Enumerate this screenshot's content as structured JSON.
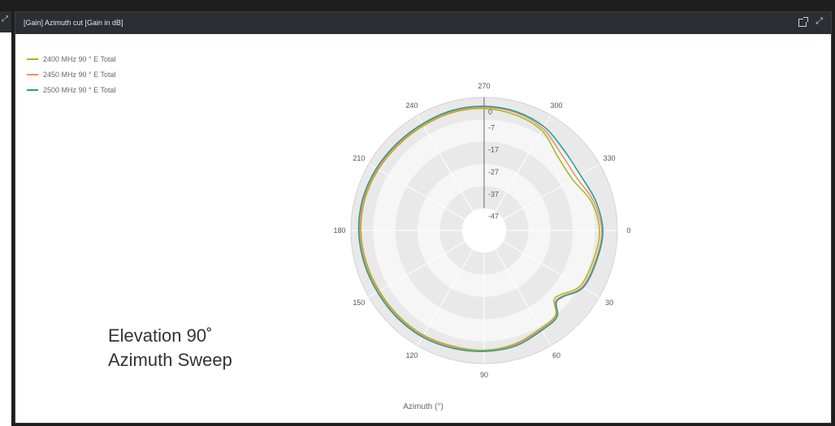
{
  "header": {
    "title": "[Gain] Azimuth cut [Gain in dB]"
  },
  "icons": {
    "popout": "popout-icon",
    "expand": "expand-icon"
  },
  "annotation": {
    "line1": "Elevation 90˚",
    "line2": "Azimuth Sweep"
  },
  "chart_data": {
    "type": "polar-line",
    "xlabel": "Azimuth (°)",
    "angular_ticks": [
      "0",
      "30",
      "60",
      "90",
      "120",
      "150",
      "180",
      "210",
      "240",
      "270",
      "300",
      "330"
    ],
    "angular_direction": "clockwise",
    "zero_position": "right",
    "radial_ticks": [
      "0",
      "-7",
      "-17",
      "-27",
      "-37",
      "-47"
    ],
    "radial_range": [
      -57,
      3
    ],
    "grid": true,
    "legend_position": "top-left",
    "angles": [
      0,
      15,
      30,
      40,
      45,
      50,
      60,
      75,
      90,
      105,
      120,
      135,
      150,
      165,
      180,
      195,
      210,
      225,
      240,
      255,
      270,
      285,
      300,
      315,
      330,
      345
    ],
    "series": [
      {
        "name": "2400 MHz 90 ° E Total",
        "color": "#a9b520",
        "values": [
          -5,
          -6,
          -7,
          -12,
          -12.5,
          -7,
          -6,
          -4,
          -3,
          -3,
          -2.5,
          -2.5,
          -2.5,
          -2,
          -1.5,
          -1.5,
          -2,
          -2.5,
          -2.5,
          -2,
          -2,
          -3,
          -5,
          -10,
          -11,
          -7
        ]
      },
      {
        "name": "2450 MHz 90 ° E Total",
        "color": "#f28e62",
        "values": [
          -4,
          -5,
          -6,
          -11,
          -11.5,
          -6.5,
          -5.5,
          -3.5,
          -2.5,
          -2.5,
          -2,
          -2,
          -2,
          -1.5,
          -1,
          -1,
          -1.5,
          -2,
          -2,
          -1.5,
          -1.5,
          -2,
          -4,
          -8,
          -9,
          -6
        ]
      },
      {
        "name": "2500 MHz 90 ° E Total",
        "color": "#1f9e97",
        "values": [
          -3.5,
          -4.5,
          -5.5,
          -10.5,
          -11,
          -6,
          -5,
          -3,
          -2.5,
          -2,
          -1.5,
          -1.5,
          -1.5,
          -1,
          -0.5,
          -0.5,
          -1,
          -1.5,
          -1.5,
          -1,
          -1,
          -1.5,
          -3,
          -6,
          -7,
          -5
        ]
      }
    ]
  }
}
